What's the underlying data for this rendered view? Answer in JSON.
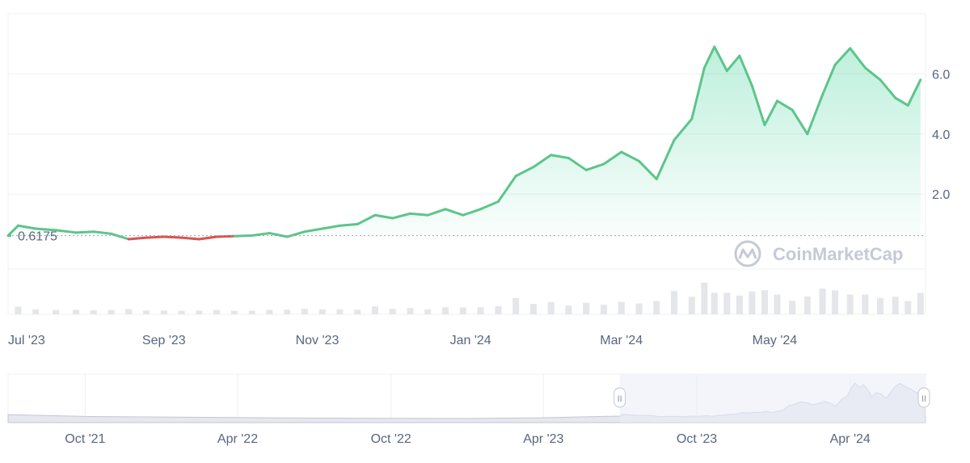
{
  "chart_data": {
    "type": "area",
    "title": "",
    "xlabel": "",
    "ylabel": "",
    "x_tick_labels": [
      "Jul '23",
      "Sep '23",
      "Nov '23",
      "Jan '24",
      "Mar '24",
      "May '24"
    ],
    "y_tick_labels": [
      "2.0",
      "4.0",
      "6.0"
    ],
    "y_ticks": [
      2.0,
      4.0,
      6.0
    ],
    "ylim": [
      -2.0,
      8.0
    ],
    "reference_line": {
      "value": 0.6175,
      "label": "0.6175"
    },
    "grid": true,
    "colors": {
      "up": "#16c784",
      "line_up": "#5cc58a",
      "down": "#d9534f",
      "volume": "#d8dbe1",
      "navigator_fill": "#e9ecf8",
      "navigator_line": "#c0c6d8"
    },
    "series": [
      {
        "values": [
          [
            "2023-07-01",
            0.62
          ],
          [
            "2023-07-05",
            0.95
          ],
          [
            "2023-07-12",
            0.85
          ],
          [
            "2023-07-20",
            0.8
          ],
          [
            "2023-07-28",
            0.72
          ],
          [
            "2023-08-04",
            0.75
          ],
          [
            "2023-08-11",
            0.68
          ],
          [
            "2023-08-18",
            0.5
          ],
          [
            "2023-08-25",
            0.55
          ],
          [
            "2023-09-01",
            0.58
          ],
          [
            "2023-09-08",
            0.55
          ],
          [
            "2023-09-15",
            0.5
          ],
          [
            "2023-09-22",
            0.58
          ],
          [
            "2023-09-29",
            0.6
          ],
          [
            "2023-10-06",
            0.62
          ],
          [
            "2023-10-13",
            0.7
          ],
          [
            "2023-10-20",
            0.58
          ],
          [
            "2023-10-27",
            0.75
          ],
          [
            "2023-11-03",
            0.85
          ],
          [
            "2023-11-10",
            0.95
          ],
          [
            "2023-11-17",
            1.0
          ],
          [
            "2023-11-24",
            1.3
          ],
          [
            "2023-12-01",
            1.2
          ],
          [
            "2023-12-08",
            1.35
          ],
          [
            "2023-12-15",
            1.3
          ],
          [
            "2023-12-22",
            1.5
          ],
          [
            "2023-12-29",
            1.3
          ],
          [
            "2024-01-05",
            1.5
          ],
          [
            "2024-01-12",
            1.75
          ],
          [
            "2024-01-19",
            2.6
          ],
          [
            "2024-01-26",
            2.9
          ],
          [
            "2024-02-02",
            3.3
          ],
          [
            "2024-02-09",
            3.2
          ],
          [
            "2024-02-16",
            2.8
          ],
          [
            "2024-02-23",
            3.0
          ],
          [
            "2024-03-01",
            3.4
          ],
          [
            "2024-03-08",
            3.1
          ],
          [
            "2024-03-15",
            2.5
          ],
          [
            "2024-03-22",
            3.8
          ],
          [
            "2024-03-29",
            4.5
          ],
          [
            "2024-04-03",
            6.2
          ],
          [
            "2024-04-07",
            6.9
          ],
          [
            "2024-04-12",
            6.1
          ],
          [
            "2024-04-17",
            6.6
          ],
          [
            "2024-04-22",
            5.6
          ],
          [
            "2024-04-27",
            4.3
          ],
          [
            "2024-05-02",
            5.1
          ],
          [
            "2024-05-08",
            4.8
          ],
          [
            "2024-05-14",
            4.0
          ],
          [
            "2024-05-20",
            5.3
          ],
          [
            "2024-05-25",
            6.3
          ],
          [
            "2024-05-31",
            6.85
          ],
          [
            "2024-06-06",
            6.2
          ],
          [
            "2024-06-12",
            5.8
          ],
          [
            "2024-06-18",
            5.2
          ],
          [
            "2024-06-23",
            4.95
          ],
          [
            "2024-06-28",
            5.8
          ]
        ]
      }
    ],
    "navigator": {
      "x_tick_labels": [
        "Oct '21",
        "Apr '22",
        "Oct '22",
        "Apr '23",
        "Oct '23",
        "Apr '24"
      ],
      "selected_range": [
        "2023-07-01",
        "2024-06-30"
      ],
      "handle_label": "II"
    },
    "watermark": "CoinMarketCap"
  }
}
